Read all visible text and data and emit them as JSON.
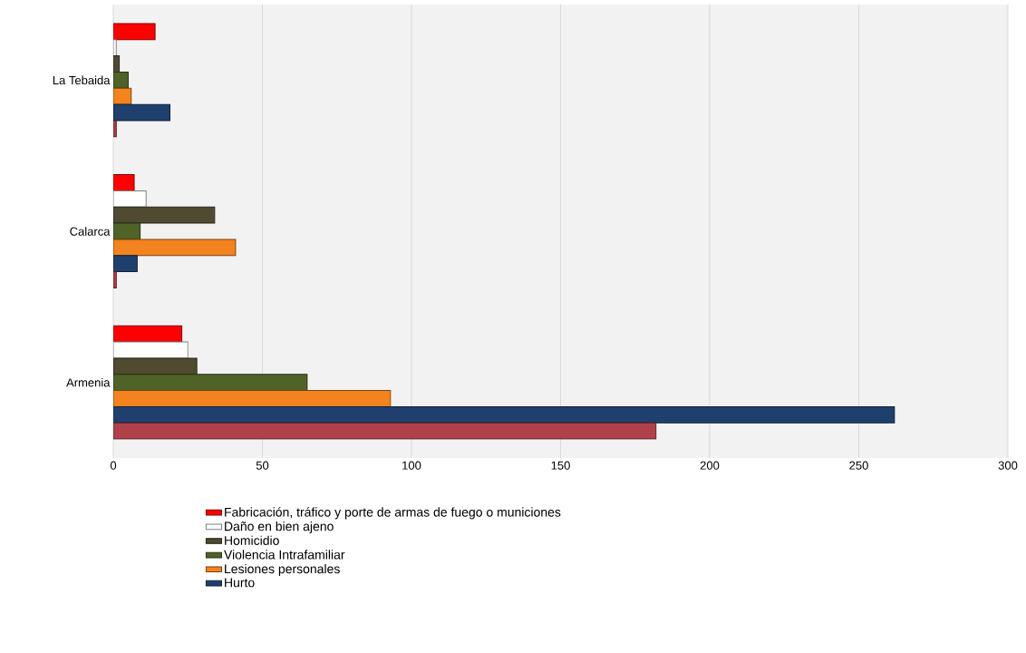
{
  "chart_data": {
    "type": "bar",
    "orientation": "horizontal",
    "categories": [
      "La Tebaida",
      "Calarca",
      "Armenia"
    ],
    "series": [
      {
        "name": "Fabricación, tráfico y porte de armas de fuego o municiones",
        "color": "#ff0000",
        "values": [
          14,
          7,
          23
        ]
      },
      {
        "name": "Daño en bien ajeno",
        "color": "#ffffff",
        "values": [
          1,
          11,
          25
        ]
      },
      {
        "name": "Homicidio",
        "color": "#4f4a30",
        "values": [
          2,
          34,
          28
        ]
      },
      {
        "name": "Violencia Intrafamiliar",
        "color": "#4f6228",
        "values": [
          5,
          9,
          65
        ]
      },
      {
        "name": "Lesiones personales",
        "color": "#f3831e",
        "values": [
          6,
          41,
          93
        ]
      },
      {
        "name": "Hurto",
        "color": "#1f3f6e",
        "values": [
          19,
          8,
          262
        ]
      },
      {
        "color": "#b0404a",
        "values": [
          1,
          1,
          182
        ]
      }
    ],
    "xlim": [
      0,
      300
    ],
    "xticks": [
      0,
      50,
      100,
      150,
      200,
      250,
      300
    ],
    "grid": "x",
    "legend": "bottom"
  }
}
